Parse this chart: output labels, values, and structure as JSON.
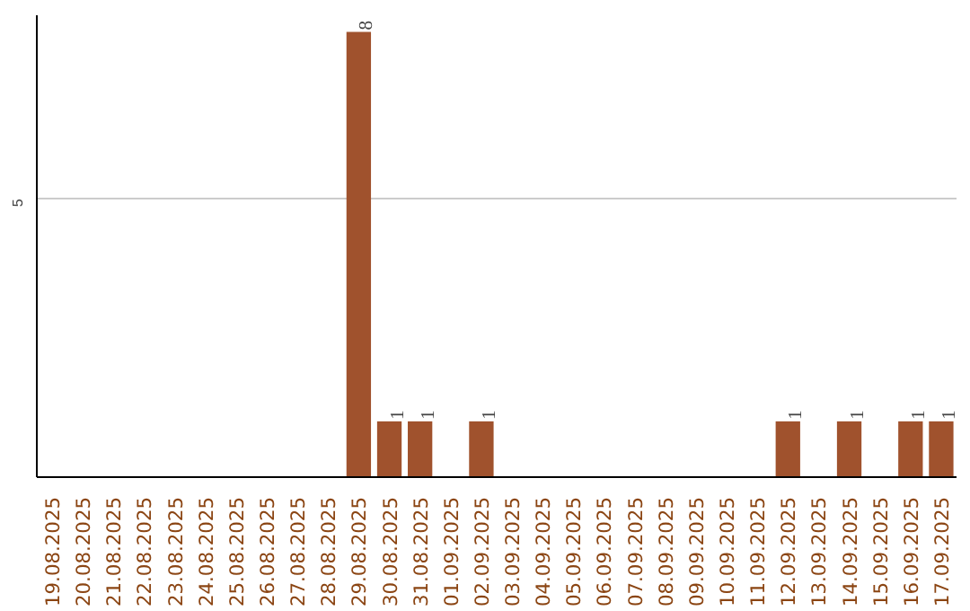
{
  "chart_data": {
    "type": "bar",
    "categories": [
      "19.08.2025",
      "20.08.2025",
      "21.08.2025",
      "22.08.2025",
      "23.08.2025",
      "24.08.2025",
      "25.08.2025",
      "26.08.2025",
      "27.08.2025",
      "28.08.2025",
      "29.08.2025",
      "30.08.2025",
      "31.08.2025",
      "01.09.2025",
      "02.09.2025",
      "03.09.2025",
      "04.09.2025",
      "05.09.2025",
      "06.09.2025",
      "07.09.2025",
      "08.09.2025",
      "09.09.2025",
      "10.09.2025",
      "11.09.2025",
      "12.09.2025",
      "13.09.2025",
      "14.09.2025",
      "15.09.2025",
      "16.09.2025",
      "17.09.2025"
    ],
    "values": [
      0,
      0,
      0,
      0,
      0,
      0,
      0,
      0,
      0,
      0,
      8,
      1,
      1,
      0,
      1,
      0,
      0,
      0,
      0,
      0,
      0,
      0,
      0,
      0,
      1,
      0,
      1,
      0,
      1,
      1
    ],
    "value_labels": [
      null,
      null,
      null,
      null,
      null,
      null,
      null,
      null,
      null,
      null,
      "8",
      "1",
      "1",
      null,
      "1",
      null,
      null,
      null,
      null,
      null,
      null,
      null,
      null,
      null,
      "1",
      null,
      "1",
      null,
      "1",
      "1"
    ],
    "color": "#a0522d",
    "ylim": [
      0,
      8.3
    ],
    "yticks": [
      5
    ],
    "grid": "y"
  }
}
